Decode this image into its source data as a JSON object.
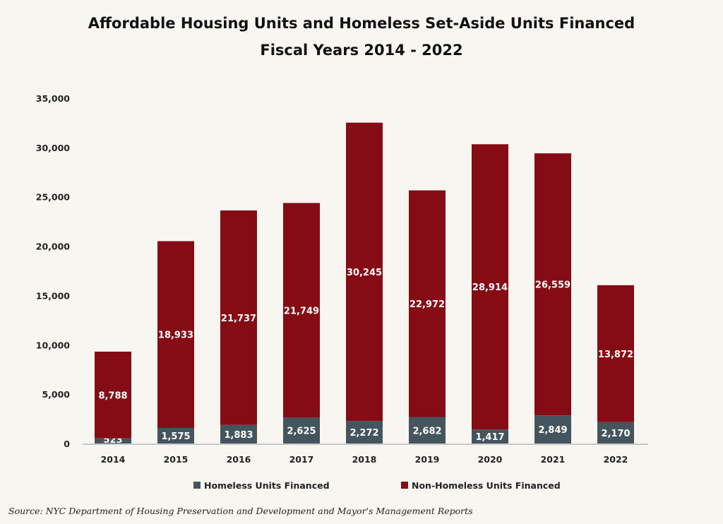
{
  "chart_data": {
    "type": "bar",
    "stacked": true,
    "title": "Affordable Housing Units and Homeless Set-Aside Units Financed",
    "subtitle": "Fiscal Years 2014 - 2022",
    "xlabel": "",
    "ylabel": "",
    "ylim": [
      0,
      35000
    ],
    "yticks": [
      0,
      5000,
      10000,
      15000,
      20000,
      25000,
      30000,
      35000
    ],
    "ytick_labels": [
      "0",
      "5,000",
      "10,000",
      "15,000",
      "20,000",
      "25,000",
      "30,000",
      "35,000"
    ],
    "categories": [
      "2014",
      "2015",
      "2016",
      "2017",
      "2018",
      "2019",
      "2020",
      "2021",
      "2022"
    ],
    "series": [
      {
        "name": "Homeless Units Financed",
        "color": "#44555e",
        "values": [
          523,
          1575,
          1883,
          2625,
          2272,
          2682,
          1417,
          2849,
          2170
        ],
        "labels": [
          "523",
          "1,575",
          "1,883",
          "2,625",
          "2,272",
          "2,682",
          "1,417",
          "2,849",
          "2,170"
        ]
      },
      {
        "name": "Non-Homeless Units Financed",
        "color": "#850c14",
        "values": [
          8788,
          18933,
          21737,
          21749,
          30245,
          22972,
          28914,
          26559,
          13872
        ],
        "labels": [
          "8,788",
          "18,933",
          "21,737",
          "21,749",
          "30,245",
          "22,972",
          "28,914",
          "26,559",
          "13,872"
        ]
      }
    ],
    "legend": "bottom-center",
    "grid": false,
    "source": "Source: NYC Department of Housing Preservation and Development and Mayor's Management Reports"
  }
}
